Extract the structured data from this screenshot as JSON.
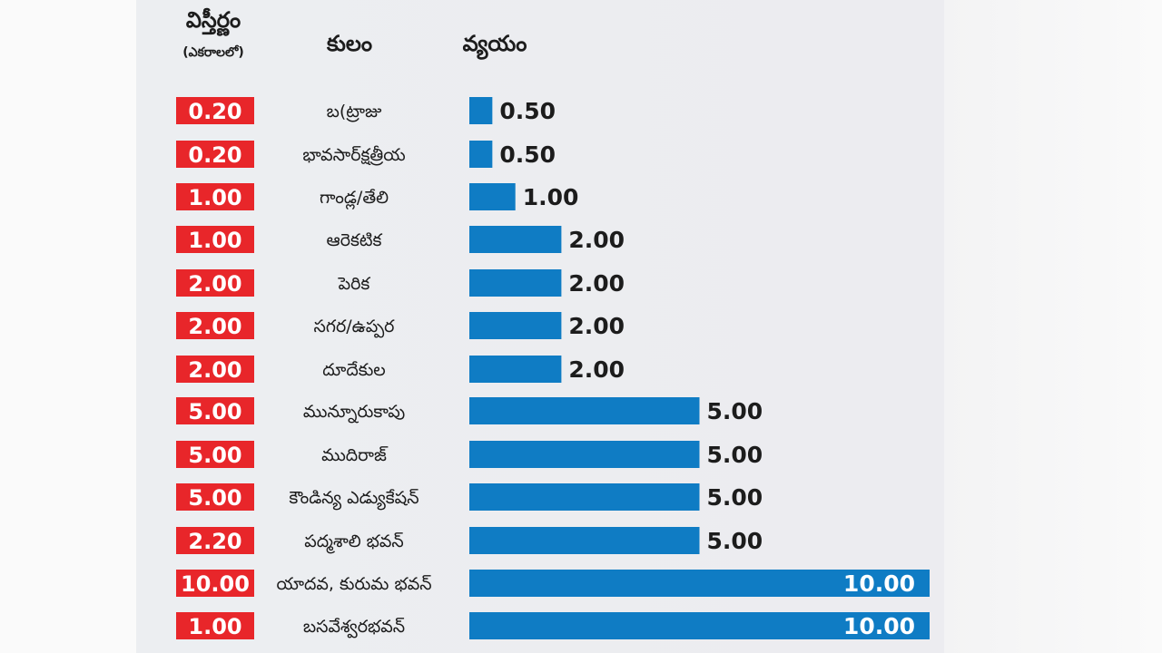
{
  "headers": {
    "area": "విస్తీర్ణం",
    "area_unit": "(ఎకరాలలో)",
    "caste": "కులం",
    "cost": "వ్యయం"
  },
  "colors": {
    "area_box": "#e8262a",
    "bar": "#0f7cc4",
    "text": "#1c1c1c"
  },
  "chart_data": {
    "type": "bar",
    "orientation": "horizontal",
    "columns": [
      "విస్తీర్ణం (ఎకరాలలో)",
      "కులం",
      "వ్యయం"
    ],
    "categories": [
      "బ(ట్రాజు",
      "భావసార్‌క్షత్రీయ",
      "గాండ్ల/తేలి",
      "ఆరెకటిక",
      "పెరిక",
      "సగర/ఉప్పర",
      "దూదేకుల",
      "మున్నూరుకాపు",
      "ముదిరాజ్",
      "కౌండిన్య ఎడ్యుకేషన్",
      "పద్మశాలి భవన్",
      "యాదవ, కురుమ భవన్",
      "బసవేశ్వరభవన్"
    ],
    "area_labels": [
      "0.20",
      "0.20",
      "1.00",
      "1.00",
      "2.00",
      "2.00",
      "2.00",
      "5.00",
      "5.00",
      "5.00",
      "2.20",
      "10.00",
      "1.00"
    ],
    "value_labels": [
      "0.50",
      "0.50",
      "1.00",
      "2.00",
      "2.00",
      "2.00",
      "2.00",
      "5.00",
      "5.00",
      "5.00",
      "5.00",
      "10.00",
      "10.00"
    ],
    "area_values": [
      0.2,
      0.2,
      1.0,
      1.0,
      2.0,
      2.0,
      2.0,
      5.0,
      5.0,
      5.0,
      2.2,
      10.0,
      1.0
    ],
    "values": [
      0.5,
      0.5,
      1.0,
      2.0,
      2.0,
      2.0,
      2.0,
      5.0,
      5.0,
      5.0,
      5.0,
      10.0,
      10.0
    ],
    "xlim": [
      0,
      10
    ]
  }
}
